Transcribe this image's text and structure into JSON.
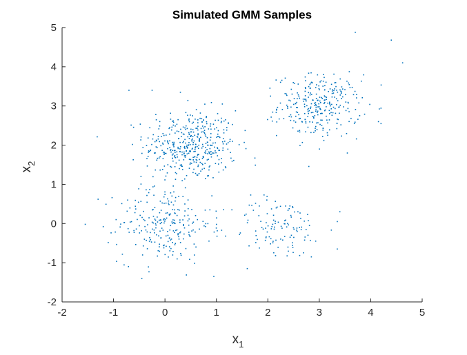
{
  "chart_data": {
    "type": "scatter",
    "title": "Simulated GMM Samples",
    "xlabel": {
      "base": "x",
      "sub": "1"
    },
    "ylabel": {
      "base": "x",
      "sub": "2"
    },
    "xlim": [
      -2,
      5
    ],
    "ylim": [
      -2,
      5
    ],
    "xticks": [
      "-2",
      "-1",
      "0",
      "1",
      "2",
      "3",
      "4",
      "5"
    ],
    "yticks": [
      "-2",
      "-1",
      "0",
      "1",
      "2",
      "3",
      "4",
      "5"
    ],
    "grid": false,
    "marker_color": "#0072BD",
    "clusters": [
      {
        "center": [
          0.5,
          2.0
        ],
        "std": [
          0.45,
          0.45
        ],
        "count": 420
      },
      {
        "center": [
          3.0,
          3.0
        ],
        "std": [
          0.4,
          0.4
        ],
        "count": 300
      },
      {
        "center": [
          0.0,
          0.0
        ],
        "std": [
          0.45,
          0.5
        ],
        "count": 240
      },
      {
        "center": [
          2.2,
          -0.1
        ],
        "std": [
          0.45,
          0.4
        ],
        "count": 120
      }
    ],
    "outliers": [
      [
        3.7,
        4.88
      ],
      [
        4.4,
        4.68
      ],
      [
        4.62,
        4.1
      ],
      [
        4.15,
        2.6
      ],
      [
        4.2,
        2.55
      ],
      [
        -1.55,
        -0.02
      ],
      [
        -1.3,
        0.62
      ],
      [
        -1.2,
        -0.08
      ],
      [
        -0.95,
        0.1
      ],
      [
        -0.45,
        -1.4
      ],
      [
        0.95,
        -1.35
      ],
      [
        1.6,
        -1.15
      ],
      [
        3.35,
        -0.65
      ],
      [
        3.35,
        0.05
      ],
      [
        3.4,
        0.3
      ],
      [
        -0.25,
        3.4
      ],
      [
        0.3,
        3.35
      ],
      [
        -0.7,
        3.4
      ]
    ]
  }
}
